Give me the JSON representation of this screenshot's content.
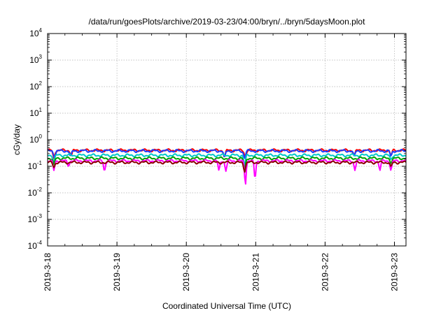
{
  "chart_data": {
    "type": "line",
    "title": "/data/run/goesPlots/archive/2019-03-23/04:00/bryn/../bryn/5daysMoon.plot",
    "xlabel": "Coordinated Universal Time (UTC)",
    "ylabel": "cGy/day",
    "y_scale": "log",
    "ylim": [
      0.0001,
      10000
    ],
    "y_ticks": [
      {
        "value": 0.0001,
        "base": "10",
        "exp": "-4"
      },
      {
        "value": 0.001,
        "base": "10",
        "exp": "-3"
      },
      {
        "value": 0.01,
        "base": "10",
        "exp": "-2"
      },
      {
        "value": 0.1,
        "base": "10",
        "exp": "-1"
      },
      {
        "value": 1,
        "base": "10",
        "exp": "0"
      },
      {
        "value": 10,
        "base": "10",
        "exp": "1"
      },
      {
        "value": 100,
        "base": "10",
        "exp": "2"
      },
      {
        "value": 1000,
        "base": "10",
        "exp": "3"
      },
      {
        "value": 10000,
        "base": "10",
        "exp": "4"
      }
    ],
    "xlim": [
      "2019-03-18 00:00",
      "2019-03-23 04:00"
    ],
    "x_ticks": [
      "2019-3-18",
      "2019-3-19",
      "2019-3-20",
      "2019-3-21",
      "2019-3-22",
      "2019-3-23"
    ],
    "grid": true,
    "legend": "none",
    "series": [
      {
        "color": "#ff0000",
        "baseline": 0.4,
        "dips": [
          {
            "t": 0.09,
            "v": 0.2
          },
          {
            "t": 0.34,
            "v": 0.25
          },
          {
            "t": 2.55,
            "v": 0.22
          },
          {
            "t": 2.85,
            "v": 0.22
          },
          {
            "t": 4.42,
            "v": 0.25
          },
          {
            "t": 4.95,
            "v": 0.25
          }
        ]
      },
      {
        "color": "#1e3cff",
        "baseline": 0.38,
        "dips": [
          {
            "t": 0.1,
            "v": 0.2
          },
          {
            "t": 0.33,
            "v": 0.24
          },
          {
            "t": 2.55,
            "v": 0.22
          },
          {
            "t": 2.84,
            "v": 0.2
          },
          {
            "t": 4.42,
            "v": 0.25
          },
          {
            "t": 4.95,
            "v": 0.24
          }
        ]
      },
      {
        "color": "#00c8c8",
        "baseline": 0.26,
        "dips": [
          {
            "t": 0.09,
            "v": 0.15
          },
          {
            "t": 2.84,
            "v": 0.1
          },
          {
            "t": 4.95,
            "v": 0.18
          }
        ]
      },
      {
        "color": "#00a000",
        "baseline": 0.2,
        "dips": [
          {
            "t": 0.09,
            "v": 0.12
          },
          {
            "t": 2.84,
            "v": 0.06
          },
          {
            "t": 4.95,
            "v": 0.13
          }
        ]
      },
      {
        "color": "#ff00ff",
        "baseline": 0.16,
        "dips": [
          {
            "t": 0.09,
            "v": 0.07
          },
          {
            "t": 0.3,
            "v": 0.1
          },
          {
            "t": 0.82,
            "v": 0.065
          },
          {
            "t": 2.47,
            "v": 0.07
          },
          {
            "t": 2.57,
            "v": 0.065
          },
          {
            "t": 2.85,
            "v": 0.015
          },
          {
            "t": 2.99,
            "v": 0.03
          },
          {
            "t": 4.43,
            "v": 0.07
          },
          {
            "t": 4.79,
            "v": 0.07
          },
          {
            "t": 4.95,
            "v": 0.07
          }
        ]
      },
      {
        "color": "#8b0000",
        "baseline": 0.14,
        "dips": [
          {
            "t": 0.09,
            "v": 0.09
          },
          {
            "t": 2.84,
            "v": 0.06
          },
          {
            "t": 4.95,
            "v": 0.1
          }
        ]
      }
    ]
  }
}
